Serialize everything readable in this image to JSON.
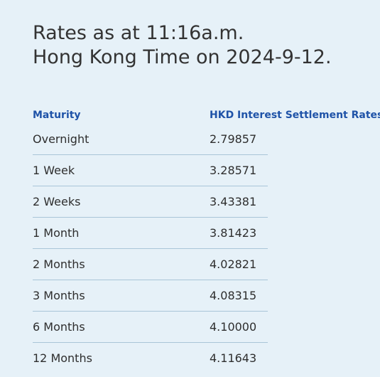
{
  "heading": {
    "line1": "Rates as at 11:16a.m.",
    "line2": "Hong Kong Time on 2024-9-12."
  },
  "table": {
    "headers": {
      "maturity": "Maturity",
      "rate": "HKD Interest Settlement Rates"
    },
    "rows": [
      {
        "maturity": "Overnight",
        "rate": "2.79857"
      },
      {
        "maturity": "1 Week",
        "rate": "3.28571"
      },
      {
        "maturity": "2 Weeks",
        "rate": "3.43381"
      },
      {
        "maturity": "1 Month",
        "rate": "3.81423"
      },
      {
        "maturity": "2 Months",
        "rate": "4.02821"
      },
      {
        "maturity": "3 Months",
        "rate": "4.08315"
      },
      {
        "maturity": "6 Months",
        "rate": "4.10000"
      },
      {
        "maturity": "12 Months",
        "rate": "4.11643"
      }
    ]
  }
}
